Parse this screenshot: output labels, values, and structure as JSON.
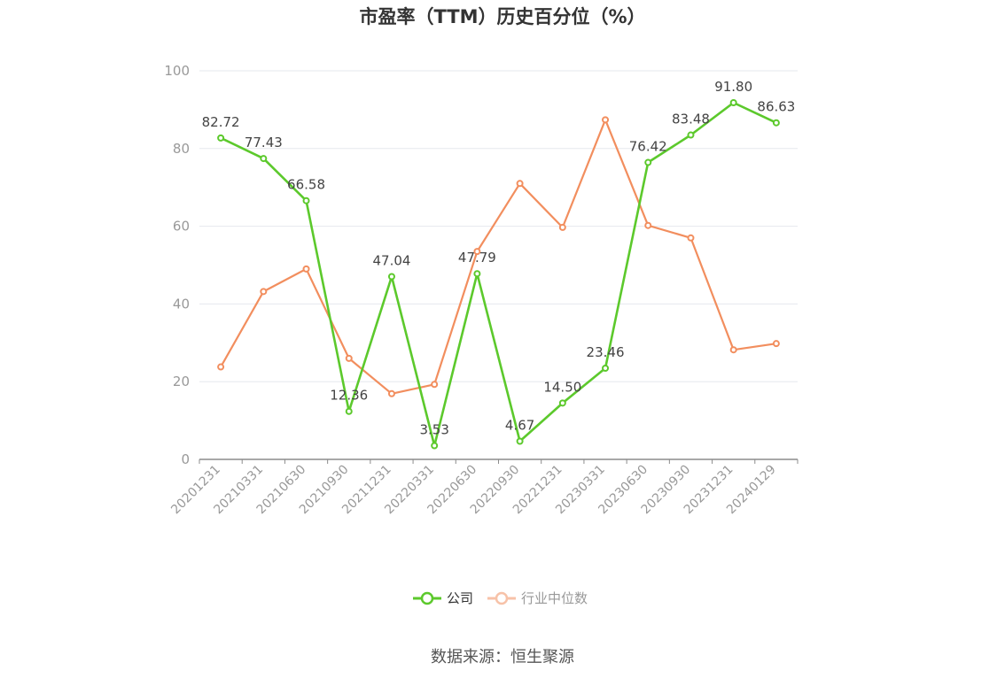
{
  "chart_data": {
    "type": "line",
    "title": "市盈率（TTM）历史百分位（%）",
    "source": "数据来源：恒生聚源",
    "x": [
      "20201231",
      "20210331",
      "20210630",
      "20210930",
      "20211231",
      "20220331",
      "20220630",
      "20220930",
      "20221231",
      "20230331",
      "20230630",
      "20230930",
      "20231231",
      "20240129"
    ],
    "ylim": [
      0,
      100
    ],
    "yticks": [
      0,
      20,
      40,
      60,
      80,
      100
    ],
    "grid": true,
    "legend_position": "bottom",
    "series": [
      {
        "name": "公司",
        "color": "#5cc92c",
        "show_labels": true,
        "values": [
          82.72,
          77.43,
          66.58,
          12.36,
          47.04,
          3.53,
          47.79,
          4.67,
          14.5,
          23.46,
          76.42,
          83.48,
          91.8,
          86.63
        ],
        "labels": [
          "82.72",
          "77.43",
          "66.58",
          "12.36",
          "47.04",
          "3.53",
          "47.79",
          "4.67",
          "14.50",
          "23.46",
          "76.42",
          "83.48",
          "91.80",
          "86.63"
        ]
      },
      {
        "name": "行业中位数",
        "color": "#f28e5e",
        "legend_color": "#f7c2a8",
        "show_labels": false,
        "values": [
          23.8,
          43.2,
          49.0,
          26.0,
          16.9,
          19.3,
          53.5,
          71.0,
          59.7,
          87.4,
          60.2,
          57.0,
          28.2,
          29.8
        ]
      }
    ]
  }
}
